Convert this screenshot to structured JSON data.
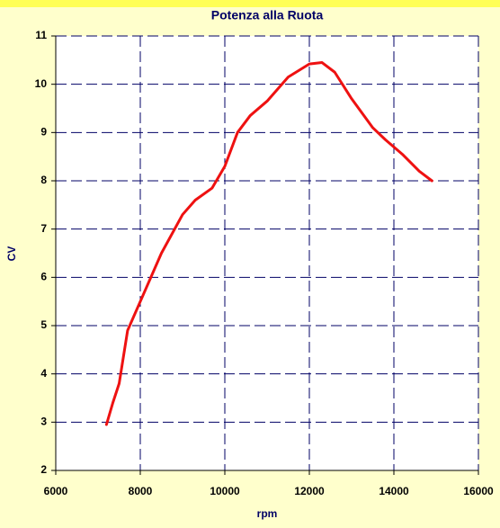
{
  "chart_data": {
    "type": "line",
    "title": "Potenza alla Ruota",
    "xlabel": "rpm",
    "ylabel": "CV",
    "x": [
      7200,
      7350,
      7500,
      7700,
      8000,
      8500,
      9000,
      9300,
      9700,
      10000,
      10300,
      10600,
      11000,
      11500,
      12000,
      12300,
      12600,
      13000,
      13500,
      13800,
      14200,
      14600,
      14900
    ],
    "values": [
      2.95,
      3.4,
      3.8,
      4.9,
      5.5,
      6.5,
      7.3,
      7.6,
      7.85,
      8.3,
      9.0,
      9.35,
      9.65,
      10.15,
      10.42,
      10.45,
      10.25,
      9.7,
      9.1,
      8.85,
      8.55,
      8.2,
      8.0
    ],
    "color": "#ee1111",
    "xlim": [
      6000,
      16000
    ],
    "xticks": [
      6000,
      8000,
      10000,
      12000,
      14000,
      16000
    ],
    "ylim": [
      2,
      11
    ],
    "yticks": [
      2,
      3,
      4,
      5,
      6,
      7,
      8,
      9,
      10,
      11
    ],
    "grid": true
  }
}
